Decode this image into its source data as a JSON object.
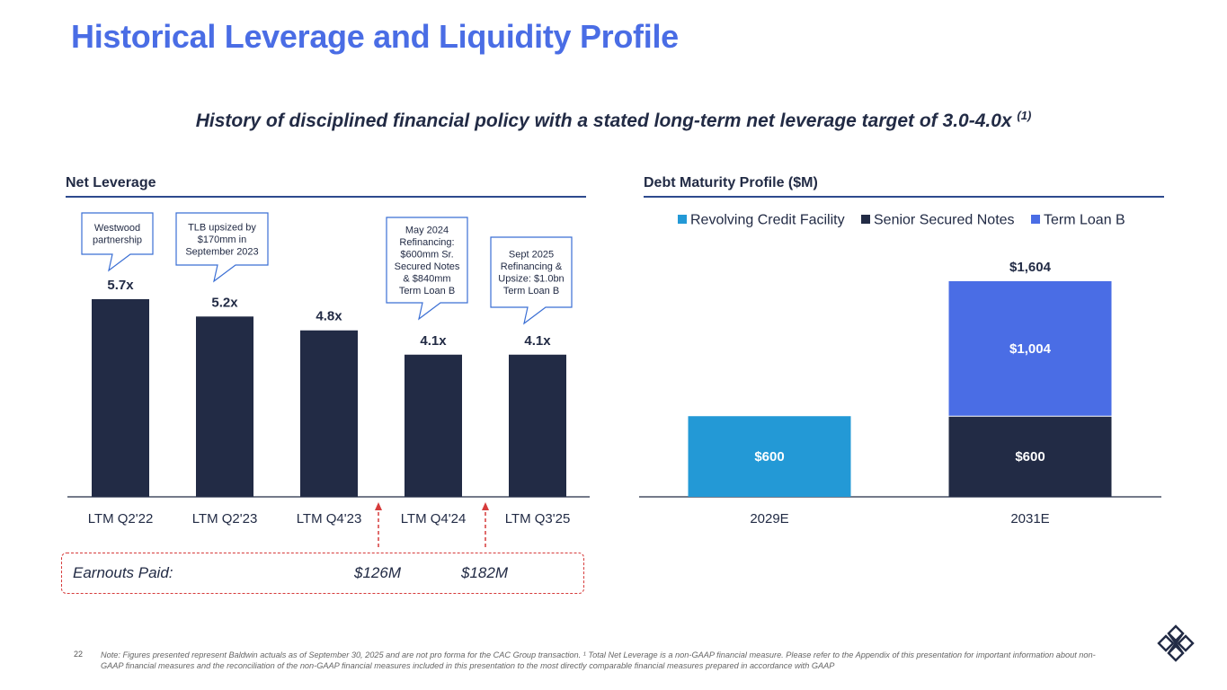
{
  "title": "Historical Leverage and Liquidity Profile",
  "subtitle": "History of disciplined financial policy with a stated long-term net leverage target of 3.0-4.0x",
  "subtitle_sup": "(1)",
  "colors": {
    "title": "#4a6de5",
    "navy": "#222b45",
    "revolver": "#2399d6",
    "term_loan": "#4a6de5",
    "callout_border": "#3b6fd4",
    "earnout_dash": "#d63b3b"
  },
  "chart_data": [
    {
      "type": "bar",
      "title": "Net Leverage",
      "categories": [
        "LTM  Q2'22",
        "LTM Q2'23",
        "LTM Q4'23",
        "LTM Q4'24",
        "LTM Q3'25"
      ],
      "values": [
        5.7,
        5.2,
        4.8,
        4.1,
        4.1
      ],
      "value_labels": [
        "5.7x",
        "5.2x",
        "4.8x",
        "4.1x",
        "4.1x"
      ],
      "ylim": [
        0,
        5.7
      ],
      "annotations": [
        {
          "category_index": 0,
          "text": [
            "Westwood",
            "partnership"
          ]
        },
        {
          "category_index": 1,
          "text": [
            "TLB upsized by",
            "$170mm in",
            "September 2023"
          ]
        },
        {
          "category_index": 3,
          "text": [
            "May 2024",
            "Refinancing:",
            "$600mm Sr.",
            "Secured Notes",
            "& $840mm",
            "Term Loan B"
          ]
        },
        {
          "category_index": 4,
          "text": [
            "Sept 2025",
            "Refinancing &",
            "Upsize: $1.0bn",
            "Term Loan B"
          ]
        }
      ]
    },
    {
      "type": "bar",
      "stacked": true,
      "title": "Debt Maturity Profile ($M)",
      "categories": [
        "2029E",
        "2031E"
      ],
      "series": [
        {
          "name": "Revolving Credit Facility",
          "color": "#2399d6",
          "values": [
            600,
            0
          ],
          "labels": [
            "$600",
            ""
          ]
        },
        {
          "name": "Senior Secured Notes",
          "color": "#222b45",
          "values": [
            0,
            600
          ],
          "labels": [
            "",
            "$600"
          ]
        },
        {
          "name": "Term Loan B",
          "color": "#4a6de5",
          "values": [
            0,
            1004
          ],
          "labels": [
            "",
            "$1,004"
          ]
        }
      ],
      "totals": [
        "",
        "$1,604"
      ],
      "ylim": [
        0,
        1604
      ],
      "legend": "top"
    }
  ],
  "earnouts": {
    "label": "Earnouts Paid:",
    "values": [
      "$126M",
      "$182M"
    ]
  },
  "page_number": "22",
  "footnote": "Note: Figures presented represent Baldwin actuals as of September 30, 2025 and are not pro forma for the CAC Group transaction. ¹ Total Net Leverage is a non-GAAP financial measure. Please refer to the Appendix of this presentation for important information about non-GAAP financial measures and the reconciliation of the non-GAAP financial measures included in this presentation to the most directly comparable financial measures prepared in accordance with GAAP"
}
